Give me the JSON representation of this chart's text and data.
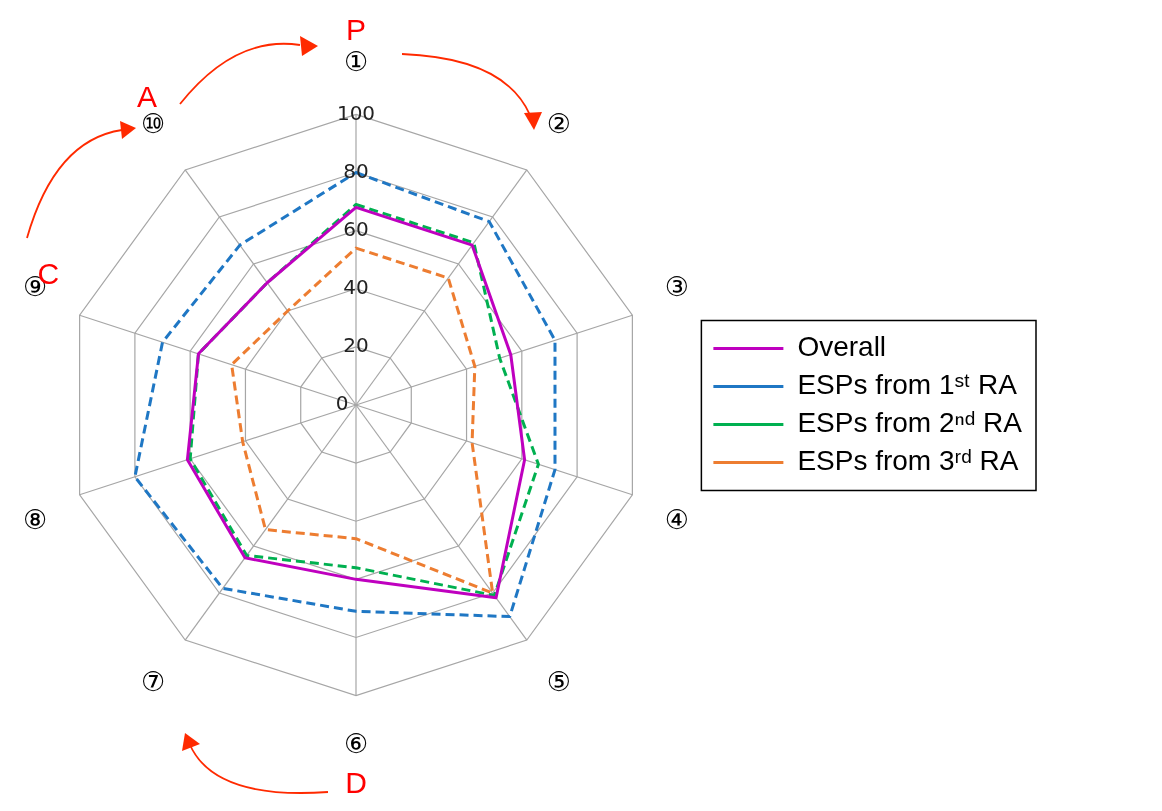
{
  "chart_data": {
    "type": "radar",
    "categories": [
      "①",
      "②",
      "③",
      "④",
      "⑤",
      "⑥",
      "⑦",
      "⑧",
      "⑨",
      "⑩"
    ],
    "series": [
      {
        "name": "Overall",
        "color": "#bf00bf",
        "line_style": "solid",
        "values": [
          68,
          68,
          56,
          61,
          82,
          60,
          65,
          61,
          57,
          52
        ]
      },
      {
        "name": "ESPs from 1ˢᵗ RA",
        "color": "#1f77c4",
        "line_style": "dashed",
        "values": [
          80,
          78,
          72,
          72,
          90,
          71,
          78,
          80,
          70,
          68
        ]
      },
      {
        "name": "ESPs from 2ⁿᵈ RA",
        "color": "#00b050",
        "line_style": "dashed",
        "values": [
          69,
          69,
          52,
          66,
          81,
          56,
          64,
          60,
          57,
          52
        ]
      },
      {
        "name": "ESPs from 3ʳᵈ RA",
        "color": "#ed7d31",
        "line_style": "dashed",
        "values": [
          54,
          54,
          43,
          42,
          80,
          46,
          53,
          41,
          45,
          40
        ]
      }
    ],
    "ylim": [
      0,
      100
    ],
    "yticks": [
      0,
      20,
      40,
      60,
      80,
      100
    ],
    "grid": true,
    "legend": "right",
    "marker": "none",
    "annotations": [
      "P",
      "A",
      "C",
      "D"
    ]
  }
}
